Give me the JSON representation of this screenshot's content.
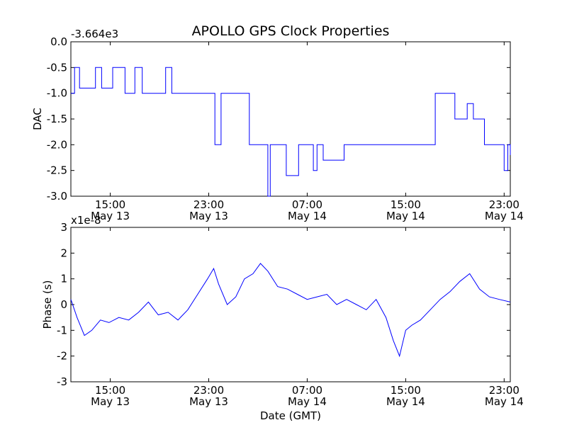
{
  "figure": {
    "title": "APOLLO GPS Clock Properties",
    "xlabel": "Date (GMT)"
  },
  "chart_data": [
    {
      "type": "line",
      "ylabel": "DAC",
      "offset_label": "-3.664e3",
      "ylim": [
        -3.0,
        0.0
      ],
      "yticks": [
        "-3.0",
        "-2.5",
        "-2.0",
        "-1.5",
        "-1.0",
        "-0.5",
        "0.0"
      ],
      "xticks": [
        {
          "time": "15:00",
          "date": "May 13"
        },
        {
          "time": "23:00",
          "date": "May 13"
        },
        {
          "time": "07:00",
          "date": "May 14"
        },
        {
          "time": "15:00",
          "date": "May 14"
        },
        {
          "time": "23:00",
          "date": "May 14"
        }
      ],
      "xlim_hours": [
        11.8,
        47.5
      ],
      "color": "#0000ff",
      "series": [
        {
          "x": [
            11.8,
            12.1,
            12.5,
            13.8,
            14.3,
            15.2,
            16.2,
            17.0,
            17.6,
            18.0,
            19.5,
            20.0,
            21.8,
            22.8,
            23.5,
            23.7,
            24.0,
            25.3,
            26.3,
            27.5,
            27.8,
            28.0,
            29.3,
            30.3,
            31.5,
            31.8,
            32.3,
            34.0,
            36.0,
            39.3,
            41.4,
            43.0,
            44.0,
            44.5,
            45.4,
            45.9,
            47.0,
            47.3,
            47.5
          ],
          "y": [
            -1.0,
            -0.5,
            -0.9,
            -0.5,
            -0.9,
            -0.5,
            -1.0,
            -0.5,
            -1.0,
            -1.0,
            -0.5,
            -1.0,
            -1.0,
            -1.0,
            -2.0,
            -2.0,
            -1.0,
            -1.0,
            -2.0,
            -2.0,
            -3.0,
            -2.0,
            -2.6,
            -2.0,
            -2.5,
            -2.0,
            -2.3,
            -2.0,
            -2.0,
            -2.0,
            -1.0,
            -1.5,
            -1.2,
            -1.5,
            -2.0,
            -2.0,
            -2.5,
            -2.0,
            -2.2
          ]
        }
      ]
    },
    {
      "type": "line",
      "ylabel": "Phase (s)",
      "offset_label": "x1e-8",
      "ylim": [
        -3,
        3
      ],
      "yticks": [
        "-3",
        "-2",
        "-1",
        "0",
        "1",
        "2",
        "3"
      ],
      "xticks": [
        {
          "time": "15:00",
          "date": "May 13"
        },
        {
          "time": "23:00",
          "date": "May 13"
        },
        {
          "time": "07:00",
          "date": "May 14"
        },
        {
          "time": "15:00",
          "date": "May 14"
        },
        {
          "time": "23:00",
          "date": "May 14"
        }
      ],
      "xlim_hours": [
        11.8,
        47.5
      ],
      "color": "#0000ff",
      "series": [
        {
          "x": [
            11.8,
            12.3,
            12.9,
            13.5,
            14.2,
            14.9,
            15.7,
            16.5,
            17.3,
            18.1,
            18.9,
            19.7,
            20.5,
            21.3,
            22.1,
            22.9,
            23.4,
            23.8,
            24.5,
            25.2,
            25.9,
            26.6,
            27.2,
            27.8,
            28.6,
            29.4,
            30.2,
            31.0,
            31.8,
            32.6,
            33.4,
            34.2,
            35.0,
            35.8,
            36.6,
            37.4,
            38.0,
            38.5,
            39.0,
            39.5,
            40.2,
            41.0,
            41.8,
            42.6,
            43.4,
            44.2,
            45.0,
            45.8,
            46.6,
            47.5
          ],
          "y": [
            0.2,
            -0.5,
            -1.2,
            -1.0,
            -0.6,
            -0.7,
            -0.5,
            -0.6,
            -0.3,
            0.1,
            -0.4,
            -0.3,
            -0.6,
            -0.2,
            0.4,
            1.0,
            1.4,
            0.8,
            0.0,
            0.3,
            1.0,
            1.2,
            1.6,
            1.3,
            0.7,
            0.6,
            0.4,
            0.2,
            0.3,
            0.4,
            0.0,
            0.2,
            0.0,
            -0.2,
            0.2,
            -0.5,
            -1.4,
            -2.0,
            -1.0,
            -0.8,
            -0.6,
            -0.2,
            0.2,
            0.5,
            0.9,
            1.2,
            0.6,
            0.3,
            0.2,
            0.1
          ]
        }
      ]
    }
  ]
}
